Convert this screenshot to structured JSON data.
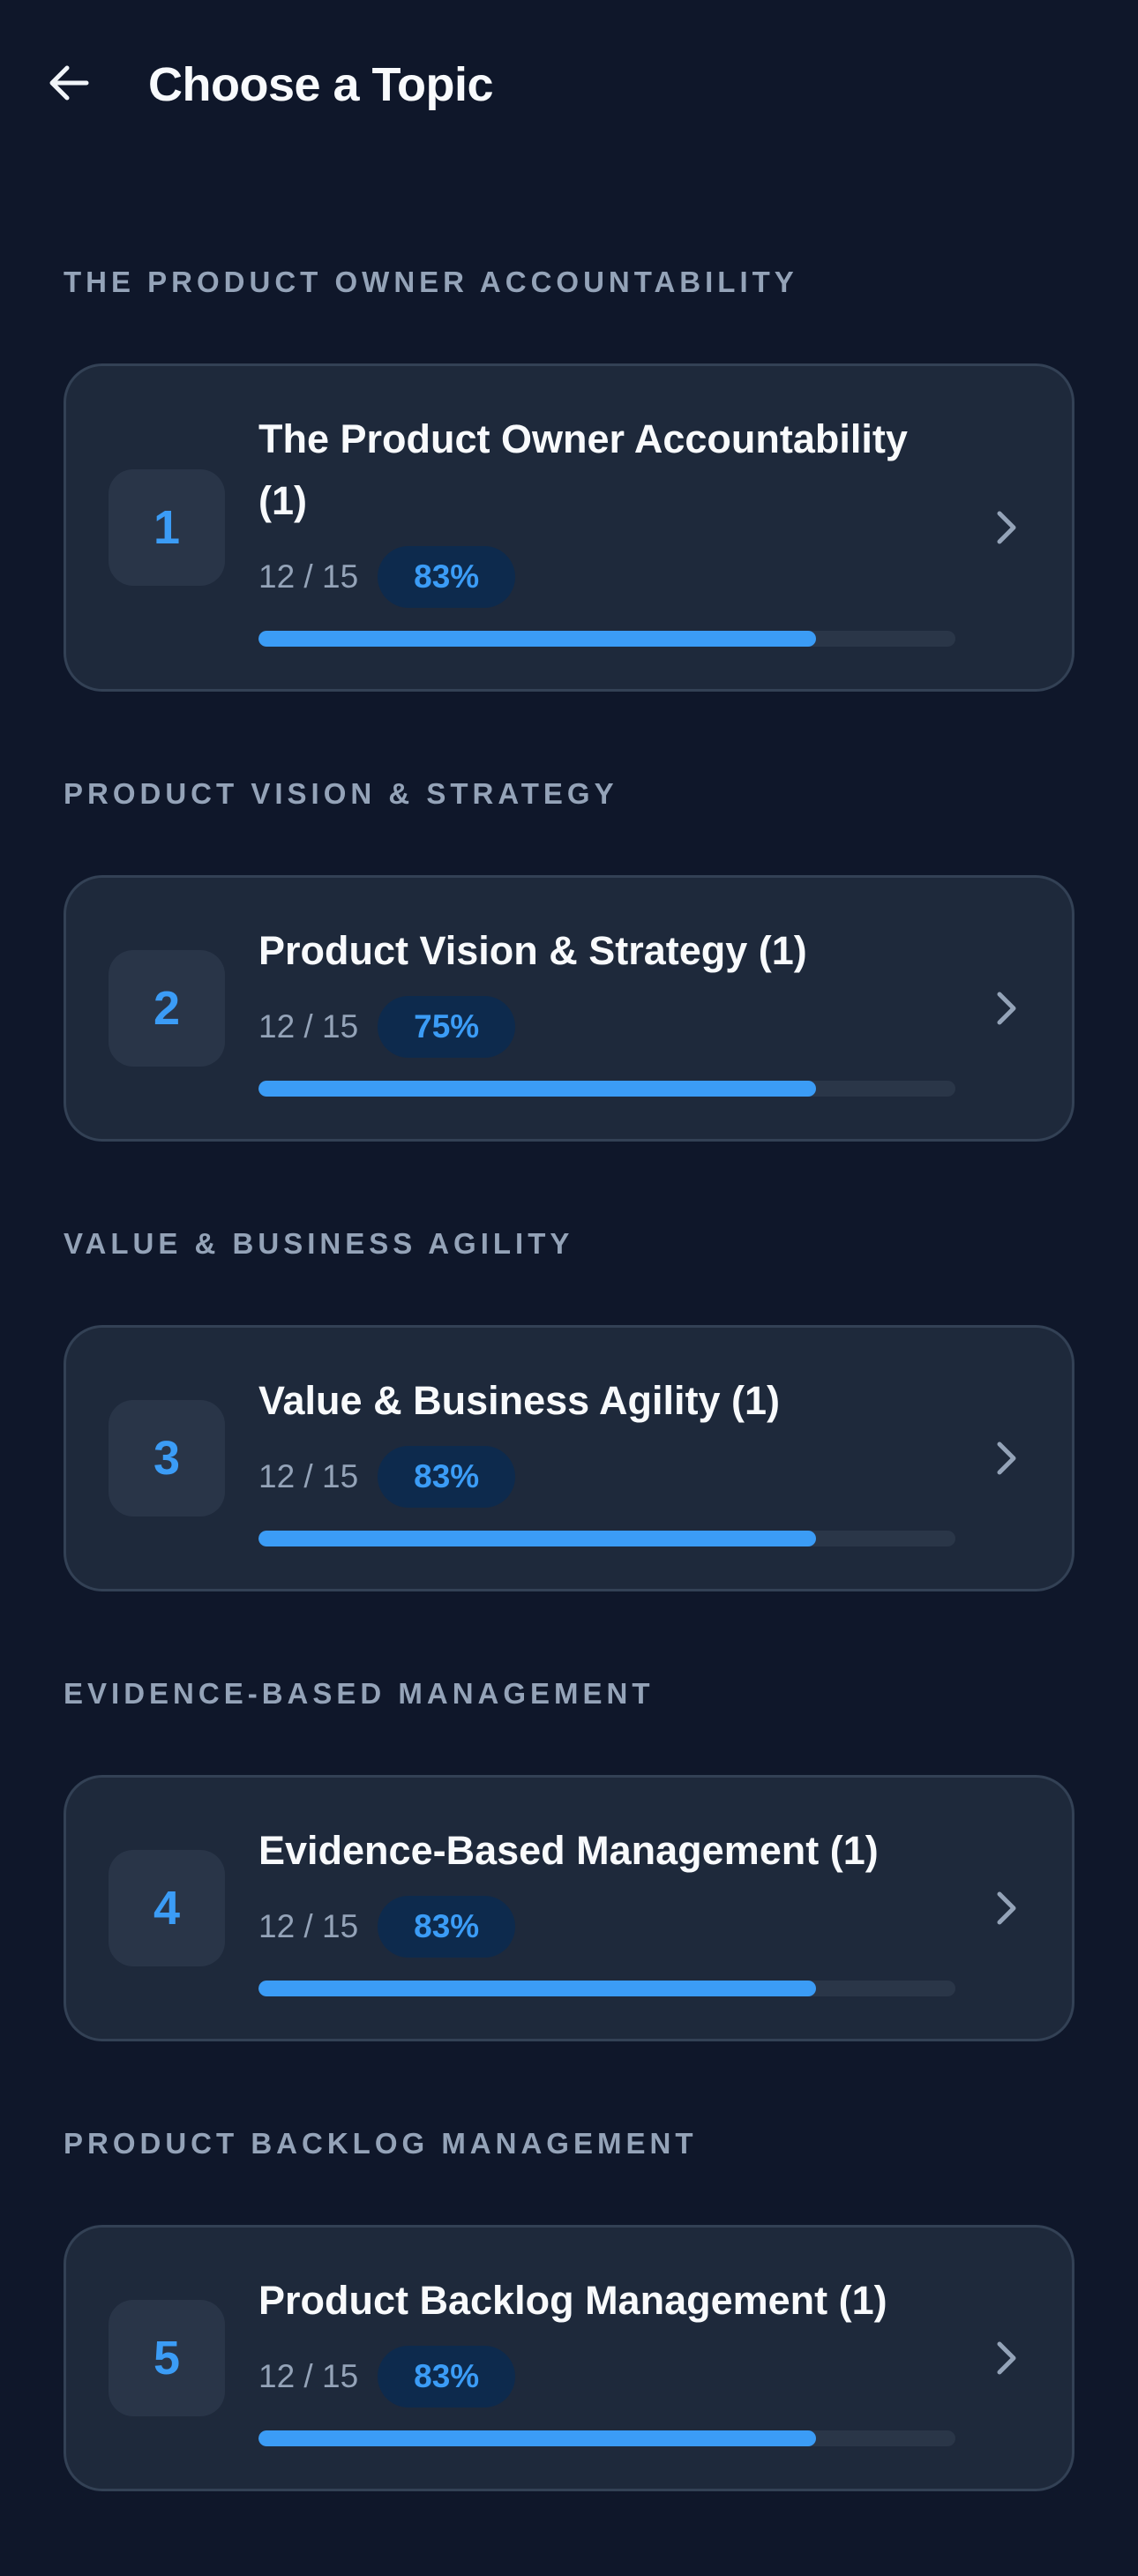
{
  "header": {
    "title": "Choose a Topic",
    "back_icon": "arrow-left-icon"
  },
  "colors": {
    "background": "#0f172a",
    "card": "#1e293b",
    "accent": "#3b9cf6",
    "muted": "#94a3b8"
  },
  "sections": [
    {
      "title": "THE PRODUCT OWNER ACCOUNTABILITY",
      "number": "1",
      "topic": "The Product Owner Accountability (1)",
      "count": "12 / 15",
      "percent": "83%",
      "progress": 0.8
    },
    {
      "title": "PRODUCT VISION & STRATEGY",
      "number": "2",
      "topic": "Product Vision & Strategy (1)",
      "count": "12 / 15",
      "percent": "75%",
      "progress": 0.8
    },
    {
      "title": "VALUE & BUSINESS AGILITY",
      "number": "3",
      "topic": "Value & Business Agility (1)",
      "count": "12 / 15",
      "percent": "83%",
      "progress": 0.8
    },
    {
      "title": "EVIDENCE-BASED MANAGEMENT",
      "number": "4",
      "topic": "Evidence-Based Management (1)",
      "count": "12 / 15",
      "percent": "83%",
      "progress": 0.8
    },
    {
      "title": "PRODUCT BACKLOG MANAGEMENT",
      "number": "5",
      "topic": "Product Backlog Management (1)",
      "count": "12 / 15",
      "percent": "83%",
      "progress": 0.8
    }
  ]
}
